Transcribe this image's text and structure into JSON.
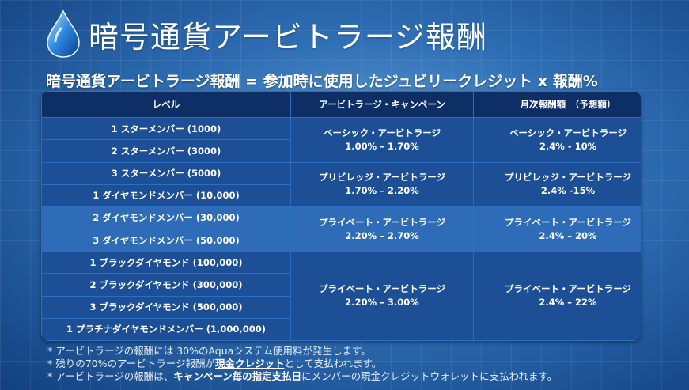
{
  "header": {
    "title": "暗号通貨アービトラージ報酬"
  },
  "formula": "暗号通貨アービトラージ報酬 = 参加時に使用したジュビリークレジット x 報酬%",
  "table": {
    "headers": [
      "レベル",
      "アービトラージ・キャンペーン",
      "月次報酬額　（予想額）"
    ],
    "levels": [
      "1 スターメンバー (1000)",
      "2 スターメンバー (3000)",
      "3 スターメンバー (5000)",
      "1 ダイヤモンドメンバー (10,000)",
      "2 ダイヤモンドメンバー (30,000)",
      "3 ダイヤモンドメンバー (50,000)",
      "1 ブラックダイヤモンド (100,000)",
      "2 ブラックダイヤモンド (300,000)",
      "3 ブラックダイヤモンド (500,000)",
      "1 プラチナダイヤモンドメンバー (1,000,000)"
    ],
    "groups": [
      {
        "campaign": "ベーシック・アービトラージ",
        "campaign_range": "1.00% – 1.70%",
        "reward": "ベーシック・アービトラージ",
        "reward_range": "2.4% - 10%"
      },
      {
        "campaign": "プリビレッジ・アービトラージ",
        "campaign_range": "1.70% – 2.20%",
        "reward": "プリビレッジ・アービトラージ",
        "reward_range": "2.4% -15%"
      },
      {
        "campaign": "プライベート・アービトラージ",
        "campaign_range": "2.20% – 2.70%",
        "reward": "プライベート・アービトラージ",
        "reward_range": "2.4% – 20%"
      },
      {
        "campaign": "プライベート・アービトラージ",
        "campaign_range": "2.20% – 3.00%",
        "reward": "プライベート・アービトラージ",
        "reward_range": "2.4% – 22%"
      }
    ]
  },
  "notes": {
    "n1": "* アービトラージの報酬には 30%のAquaシステム使用料が発生します。",
    "n2_a": "* 残りの70%のアービトラージ報酬が",
    "n2_u": "現金クレジット",
    "n2_b": "として支払われます。",
    "n3_a": "* アービトラージの報酬は、",
    "n3_u": "キャンペーン毎の指定支払日",
    "n3_b": "にメンバーの現金クレジットウォレットに支払われます。"
  },
  "icons": {
    "logo": "water-drop-icon"
  },
  "colors": {
    "table_bg": "#0d2f66",
    "row": "#1d4f96",
    "row_highlight": "#2f6cb8"
  }
}
